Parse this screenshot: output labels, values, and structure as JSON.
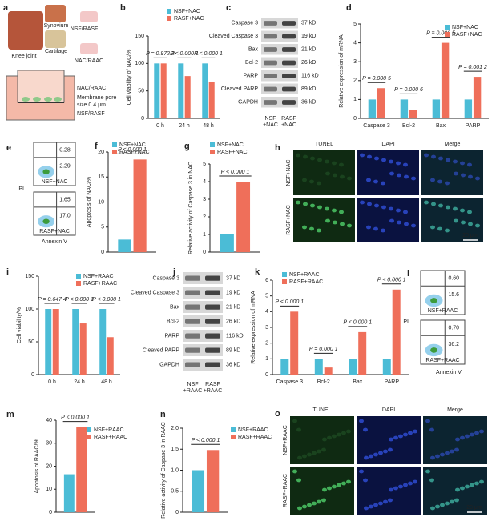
{
  "chart_data": [
    {
      "panel": "b",
      "type": "bar",
      "ylabel": "Cell viability of NAC/%",
      "categories": [
        "0 h",
        "24 h",
        "48 h"
      ],
      "series": [
        {
          "name": "NSF+NAC",
          "color": "#4bbcd6",
          "values": [
            100,
            100,
            100
          ]
        },
        {
          "name": "RASF+NAC",
          "color": "#ef6f5a",
          "values": [
            100,
            77,
            67
          ]
        }
      ],
      "ylim": [
        0,
        150
      ],
      "yticks": [
        0,
        50,
        100,
        150
      ],
      "annotations": [
        "P = 0.972 2",
        "P < 0.000 1",
        "P < 0.000 1"
      ]
    },
    {
      "panel": "d",
      "type": "bar",
      "ylabel": "Relative expression of mRNA",
      "categories": [
        "Caspase 3",
        "Bcl-2",
        "Bax",
        "PARP"
      ],
      "series": [
        {
          "name": "NSF+NAC",
          "color": "#4bbcd6",
          "values": [
            1,
            1,
            1,
            1
          ]
        },
        {
          "name": "RASF+NAC",
          "color": "#ef6f5a",
          "values": [
            1.6,
            0.45,
            4,
            2.2
          ]
        }
      ],
      "ylim": [
        0,
        5
      ],
      "yticks": [
        0,
        1,
        2,
        3,
        4,
        5
      ],
      "annotations": [
        "P = 0.000 5",
        "P = 0.000 6",
        "P = 0.000 5",
        "P = 0.001 2"
      ]
    },
    {
      "panel": "f",
      "type": "bar",
      "ylabel": "Apoptosis of NAC/%",
      "categories": [
        null
      ],
      "series": [
        {
          "name": "NSF+NAC",
          "color": "#4bbcd6",
          "values": [
            2.5
          ]
        },
        {
          "name": "RASF+NAC",
          "color": "#ef6f5a",
          "values": [
            18.5
          ]
        }
      ],
      "ylim": [
        0,
        20
      ],
      "yticks": [
        0,
        5,
        10,
        15,
        20
      ],
      "annotations": [
        "P < 0.000 1"
      ]
    },
    {
      "panel": "g",
      "type": "bar",
      "ylabel": "Relative activity of Caspase 3 in NAC",
      "categories": [
        null
      ],
      "series": [
        {
          "name": "NSF+NAC",
          "color": "#4bbcd6",
          "values": [
            1
          ]
        },
        {
          "name": "RASF+NAC",
          "color": "#ef6f5a",
          "values": [
            4
          ]
        }
      ],
      "ylim": [
        0,
        5
      ],
      "yticks": [
        0,
        1,
        2,
        3,
        4,
        5
      ],
      "annotations": [
        "P < 0.000 1"
      ]
    },
    {
      "panel": "i",
      "type": "bar",
      "ylabel": "Cell viability/%",
      "categories": [
        "0 h",
        "24 h",
        "48 h"
      ],
      "series": [
        {
          "name": "NSF+RAAC",
          "color": "#4bbcd6",
          "values": [
            100,
            100,
            100
          ]
        },
        {
          "name": "RASF+RAAC",
          "color": "#ef6f5a",
          "values": [
            100,
            78,
            57
          ]
        }
      ],
      "ylim": [
        0,
        150
      ],
      "yticks": [
        0,
        50,
        100,
        150
      ],
      "annotations": [
        "P = 0.647 4",
        "P < 0.000 1",
        "P < 0.000 1"
      ]
    },
    {
      "panel": "k",
      "type": "bar",
      "ylabel": "Relative expression of mRNA",
      "categories": [
        "Caspase 3",
        "Bcl-2",
        "Bax",
        "PARP"
      ],
      "series": [
        {
          "name": "NSF+RAAC",
          "color": "#4bbcd6",
          "values": [
            1,
            1,
            1,
            1
          ]
        },
        {
          "name": "RASF+RAAC",
          "color": "#ef6f5a",
          "values": [
            4,
            0.45,
            2.7,
            5.4
          ]
        }
      ],
      "ylim": [
        0,
        6
      ],
      "yticks": [
        0,
        1,
        2,
        3,
        4,
        5,
        6
      ],
      "annotations": [
        "P < 0.000 1",
        "P = 0.000 1",
        "P < 0.000 1",
        "P < 0.000 1"
      ]
    },
    {
      "panel": "m",
      "type": "bar",
      "ylabel": "Apoptosis of RAAC/%",
      "categories": [
        null
      ],
      "series": [
        {
          "name": "NSF+RAAC",
          "color": "#4bbcd6",
          "values": [
            16.5
          ]
        },
        {
          "name": "RASF+RAAC",
          "color": "#ef6f5a",
          "values": [
            37
          ]
        }
      ],
      "ylim": [
        0,
        40
      ],
      "yticks": [
        0,
        10,
        20,
        30,
        40
      ],
      "annotations": [
        "P < 0.000 1"
      ]
    },
    {
      "panel": "n",
      "type": "bar",
      "ylabel": "Relative activity of Caspase 3 in RAAC",
      "categories": [
        null
      ],
      "series": [
        {
          "name": "NSF+RAAC",
          "color": "#4bbcd6",
          "values": [
            1.0
          ]
        },
        {
          "name": "RASF+RAAC",
          "color": "#ef6f5a",
          "values": [
            1.48
          ]
        }
      ],
      "ylim": [
        0,
        2
      ],
      "yticks": [
        0,
        0.5,
        {
          "value": 1,
          "label": "1.0"
        },
        1.5,
        {
          "value": 2,
          "label": "2.0"
        }
      ],
      "annotations": [
        "P < 0.000 1"
      ]
    }
  ],
  "schematic": {
    "panel": "a",
    "knee": "Knee joint",
    "synovium": "Synovium",
    "cartilage": "Cartilage",
    "cells1": "NSF/RASF",
    "cells2": "NAC/RAAC",
    "top": "NAC/RAAC",
    "membrane": [
      "Membrane pore",
      "size 0.4 μm"
    ],
    "bottom": "NSF/RASF"
  },
  "blots": [
    {
      "panel": "c",
      "rows": [
        "Caspase 3",
        "Cleaved Caspase 3",
        "Bax",
        "Bcl-2",
        "PARP",
        "Cleaved PARP",
        "GAPDH"
      ],
      "sizes": [
        "37 kD",
        "19 kD",
        "21 kD",
        "26 kD",
        "116 kD",
        "89 kD",
        "36 kD"
      ],
      "lanes": [
        [
          "NSF",
          "+NAC"
        ],
        [
          "RASF",
          "+NAC"
        ]
      ]
    },
    {
      "panel": "j",
      "rows": [
        "Caspase 3",
        "Cleaved Caspase 3",
        "Bax",
        "Bcl-2",
        "PARP",
        "Cleaved PARP",
        "GAPDH"
      ],
      "sizes": [
        "37 kD",
        "19 kD",
        "21 kD",
        "26 kD",
        "116 kD",
        "89 kD",
        "36 kD"
      ],
      "lanes": [
        [
          "NSF",
          "+RAAC"
        ],
        [
          "RASF",
          "+RAAC"
        ]
      ]
    }
  ],
  "flow": [
    {
      "panel": "e",
      "y_axis": "PI",
      "x_axis": "Annexin V",
      "plots": [
        {
          "label": "NSF+NAC",
          "upper": "0.28",
          "lower": "2.29"
        },
        {
          "label": "RASF+NAC",
          "upper": "1.65",
          "lower": "17.0"
        }
      ]
    },
    {
      "panel": "l",
      "y_axis": "PI",
      "x_axis": "Annexin V",
      "plots": [
        {
          "label": "NSF+RAAC",
          "upper": "0.60",
          "lower": "15.6"
        },
        {
          "label": "RASF+RAAC",
          "upper": "0.70",
          "lower": "36.2"
        }
      ]
    }
  ],
  "images": [
    {
      "panel": "h",
      "columns": [
        "TUNEL",
        "DAPI",
        "Merge"
      ],
      "rows": [
        "NSF+NAC",
        "RASF+NAC"
      ],
      "scale": "20 μm"
    },
    {
      "panel": "o",
      "columns": [
        "TUNEL",
        "DAPI",
        "Merge"
      ],
      "rows": [
        "NSF+RAAC",
        "RASF+RAAC"
      ],
      "scale": "20 μm"
    }
  ]
}
